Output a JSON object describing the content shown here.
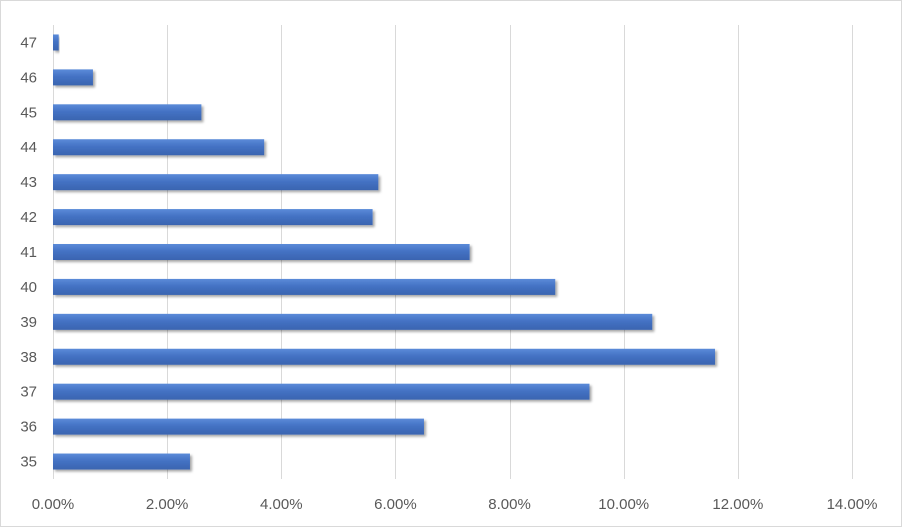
{
  "chart_data": {
    "type": "bar",
    "orientation": "horizontal",
    "categories": [
      "35",
      "36",
      "37",
      "38",
      "39",
      "40",
      "41",
      "42",
      "43",
      "44",
      "45",
      "46",
      "47"
    ],
    "values": [
      0.024,
      0.065,
      0.094,
      0.116,
      0.105,
      0.088,
      0.073,
      0.056,
      0.057,
      0.037,
      0.026,
      0.007,
      0.001
    ],
    "xlim": [
      0,
      0.14
    ],
    "x_ticks": [
      {
        "value": 0.0,
        "label": "0.00%"
      },
      {
        "value": 0.02,
        "label": "2.00%"
      },
      {
        "value": 0.04,
        "label": "4.00%"
      },
      {
        "value": 0.06,
        "label": "6.00%"
      },
      {
        "value": 0.08,
        "label": "8.00%"
      },
      {
        "value": 0.1,
        "label": "10.00%"
      },
      {
        "value": 0.12,
        "label": "12.00%"
      },
      {
        "value": 0.14,
        "label": "14.00%"
      }
    ],
    "grid": "vertical",
    "legend": "none",
    "title": "",
    "xlabel": "",
    "ylabel": "",
    "colors": {
      "bar": "#4472c4",
      "bar_highlight": "#5b8bd9",
      "bar_shadow": "#2f5597",
      "grid": "#d9d9d9",
      "text": "#595959",
      "border": "#d9d9d9"
    }
  }
}
